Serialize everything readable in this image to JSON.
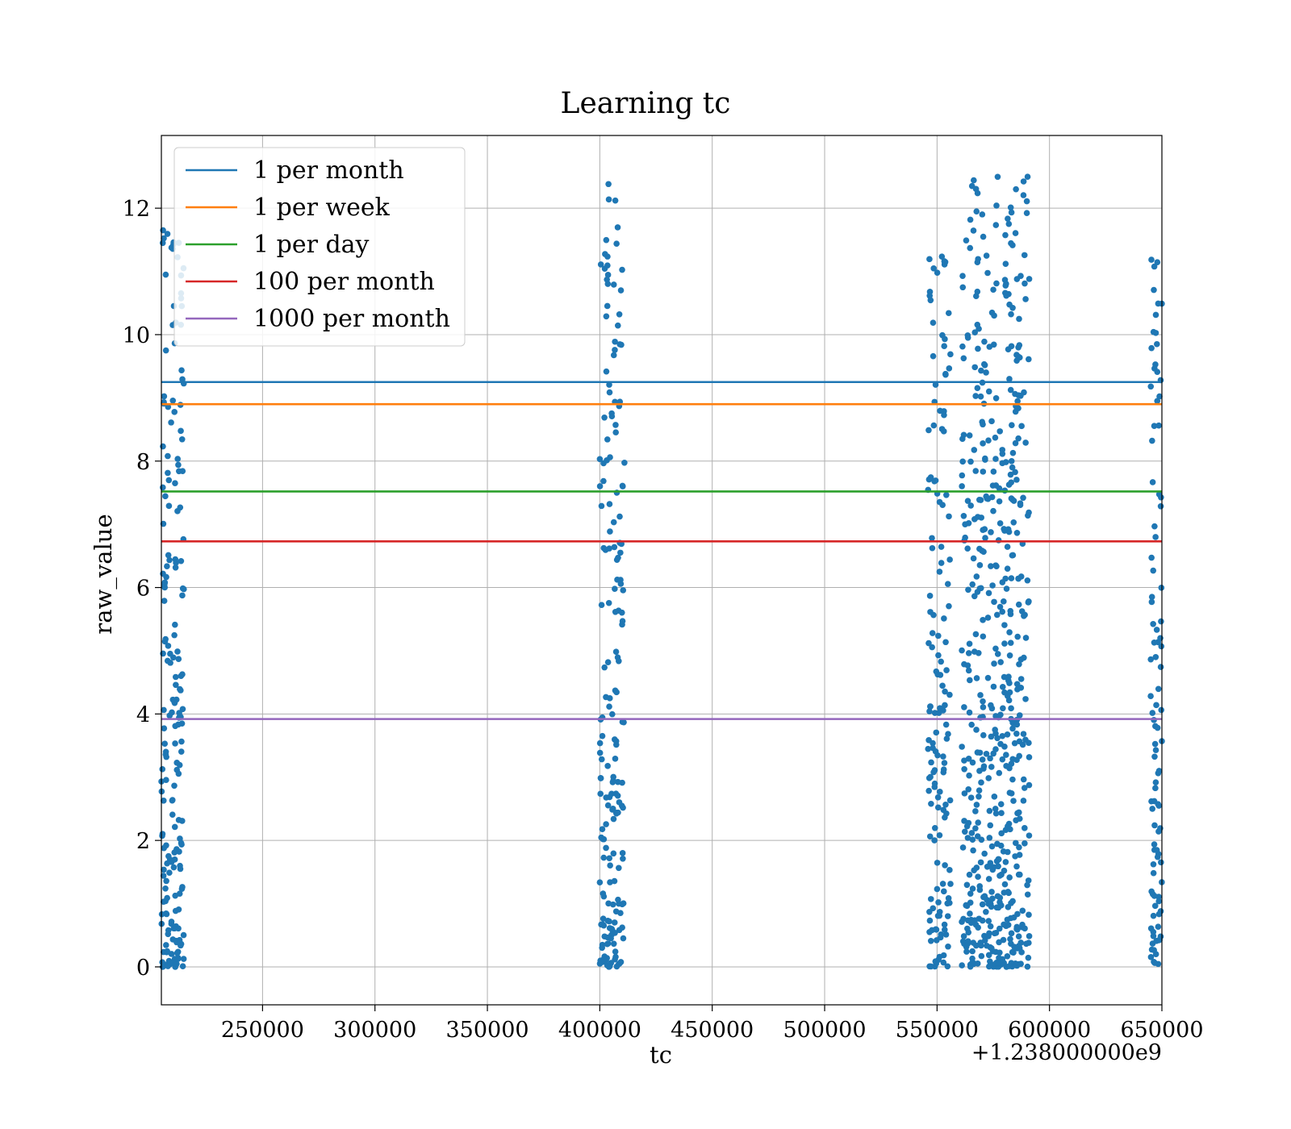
{
  "chart_data": {
    "type": "scatter",
    "title": "Learning tc",
    "xlabel": "tc",
    "ylabel": "raw_value",
    "x_offset_label": "+1.238000000e9",
    "xlim": [
      205000,
      650000
    ],
    "ylim": [
      -0.6,
      13.15
    ],
    "x_ticks": [
      250000,
      300000,
      350000,
      400000,
      450000,
      500000,
      550000,
      600000,
      650000
    ],
    "x_tick_labels": [
      "250000",
      "300000",
      "350000",
      "400000",
      "450000",
      "500000",
      "550000",
      "600000",
      "650000"
    ],
    "y_ticks": [
      0,
      2,
      4,
      6,
      8,
      10,
      12
    ],
    "y_tick_labels": [
      "0",
      "2",
      "4",
      "6",
      "8",
      "10",
      "12"
    ],
    "grid": true,
    "legend_position": "top-left",
    "scatter_color": "#1f77b4",
    "scatter_clusters": [
      {
        "x_range": [
          205000,
          215000
        ],
        "y_range": [
          0,
          11.7
        ],
        "count": 200
      },
      {
        "x_range": [
          400000,
          411000
        ],
        "y_range": [
          0,
          12.5
        ],
        "count": 190
      },
      {
        "x_range": [
          546000,
          556000
        ],
        "y_range": [
          0,
          11.3
        ],
        "count": 150
      },
      {
        "x_range": [
          561000,
          591000
        ],
        "y_range": [
          0,
          12.5
        ],
        "count": 560
      },
      {
        "x_range": [
          645000,
          650000
        ],
        "y_range": [
          0,
          11.3
        ],
        "count": 100
      }
    ],
    "series": [
      {
        "name": "1 per month",
        "y": 9.25,
        "color": "#1f77b4"
      },
      {
        "name": "1 per week",
        "y": 8.9,
        "color": "#ff7f0e"
      },
      {
        "name": "1 per day",
        "y": 7.52,
        "color": "#2ca02c"
      },
      {
        "name": "100 per month",
        "y": 6.73,
        "color": "#d62728"
      },
      {
        "name": "1000 per month",
        "y": 3.92,
        "color": "#9467bd"
      }
    ]
  }
}
